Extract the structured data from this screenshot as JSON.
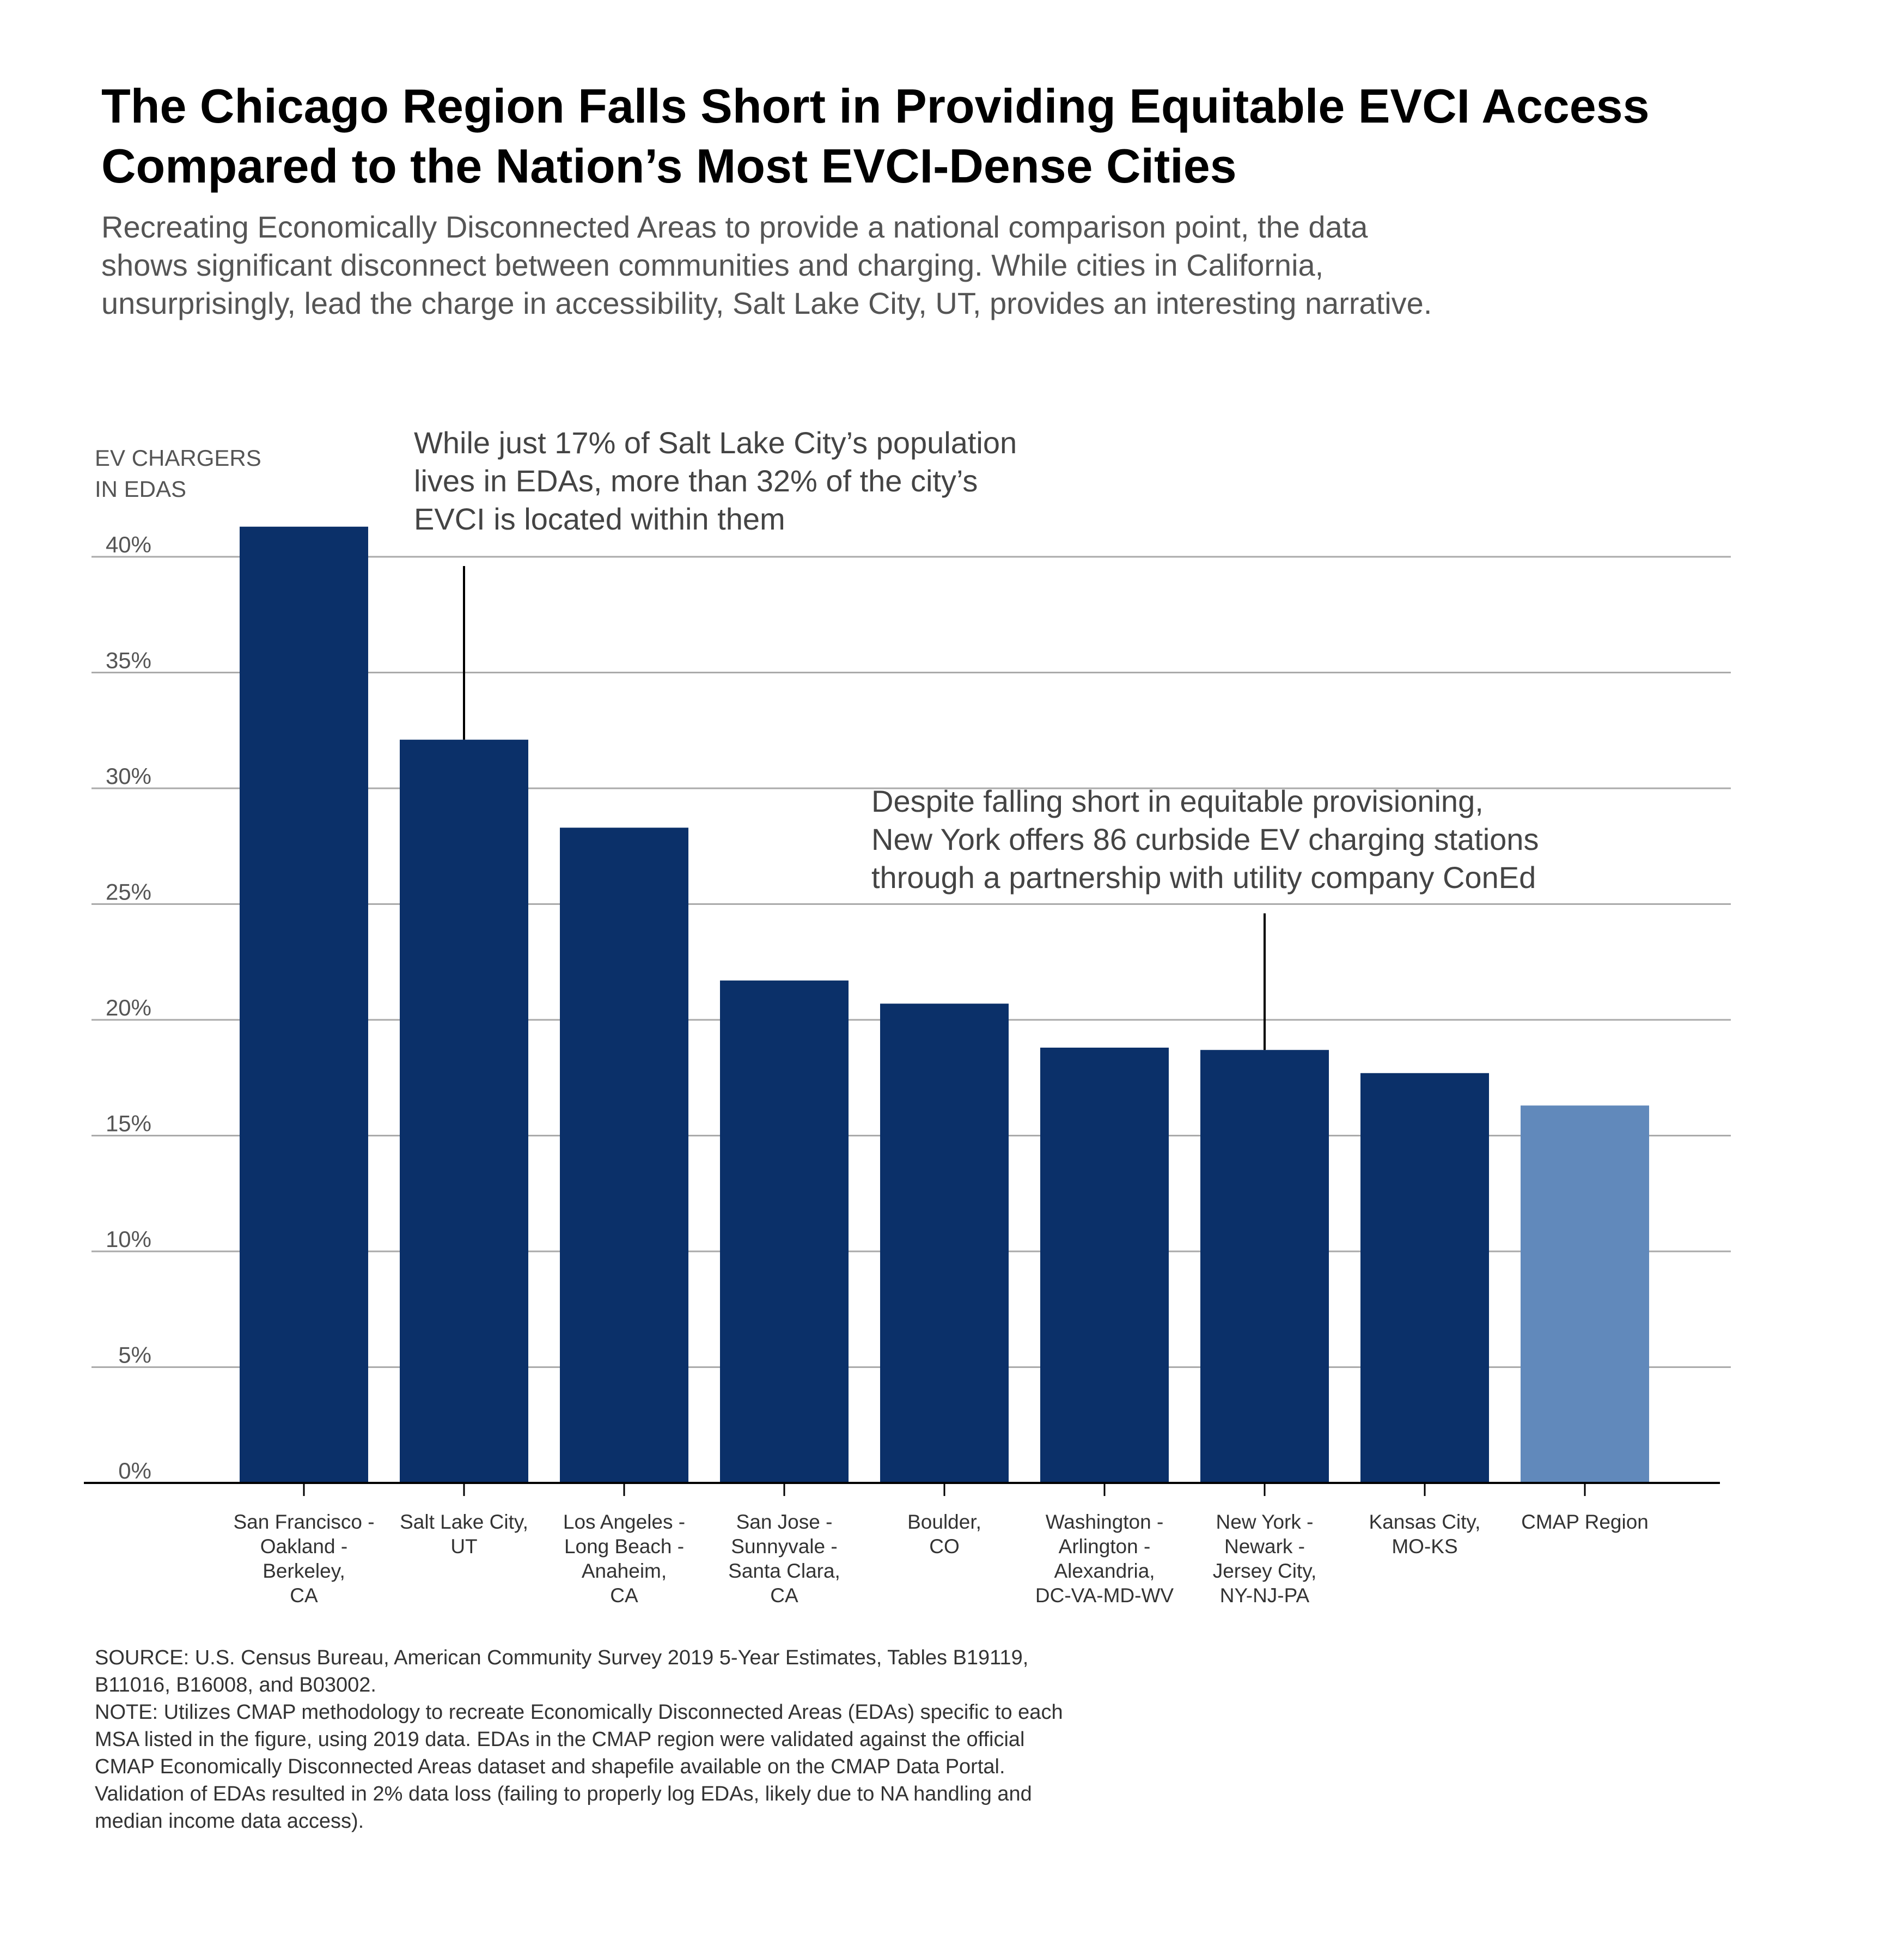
{
  "title_line1": "The Chicago Region Falls Short in Providing Equitable EVCI Access",
  "title_line2": "Compared to the Nation’s Most EVCI-Dense Cities",
  "subtitle_line1": "Recreating Economically Disconnected Areas to provide a national comparison point, the data",
  "subtitle_line2": "shows significant disconnect between communities and charging. While cities in California,",
  "subtitle_line3": "unsurprisingly, lead the charge in accessibility, Salt Lake City, UT, provides an interesting narrative.",
  "source_line1": "SOURCE: U.S. Census Bureau, American Community Survey 2019 5-Year Estimates, Tables B19119,",
  "source_line2": "B11016, B16008, and B03002.",
  "note_line1": "NOTE: Utilizes CMAP methodology to recreate Economically Disconnected Areas (EDAs) specific to each",
  "note_line2": "MSA listed in the figure, using 2019 data. EDAs in the CMAP region were validated against the official",
  "note_line3": "CMAP Economically Disconnected Areas dataset and shapefile available on the CMAP Data Portal.",
  "note_line4": "Validation of EDAs resulted in 2% data loss (failing to properly log EDAs, likely due to NA handling and",
  "note_line5": "median income data access).",
  "colors": {
    "bar_primary": "#0b3069",
    "bar_highlight": "#6189bb",
    "gridline": "#aaaaaa",
    "axis": "#000000"
  },
  "chart_data": {
    "type": "bar",
    "ylabel": [
      "EV CHARGERS",
      "IN EDAS"
    ],
    "ylim": [
      0,
      40
    ],
    "yticks": [
      "0%",
      "5%",
      "10%",
      "15%",
      "20%",
      "25%",
      "30%",
      "35%",
      "40%"
    ],
    "grid": true,
    "categories": [
      [
        "San Francisco -",
        "Oakland -",
        "Berkeley,",
        "CA"
      ],
      [
        "Salt Lake City,",
        "UT"
      ],
      [
        "Los Angeles -",
        "Long Beach -",
        "Anaheim,",
        "CA"
      ],
      [
        "San Jose -",
        "Sunnyvale -",
        "Santa Clara,",
        "CA"
      ],
      [
        "Boulder,",
        "CO"
      ],
      [
        "Washington -",
        "Arlington -",
        "Alexandria,",
        "DC-VA-MD-WV"
      ],
      [
        "New York -",
        "Newark -",
        "Jersey City,",
        "NY-NJ-PA"
      ],
      [
        "Kansas City,",
        "MO-KS"
      ],
      [
        "CMAP Region"
      ]
    ],
    "values": [
      41.3,
      32.1,
      28.3,
      21.7,
      20.7,
      18.8,
      18.7,
      17.7,
      16.3
    ],
    "highlight_index": 8,
    "annotations": [
      {
        "lines": [
          "While just 17% of Salt Lake City’s population",
          "lives in EDAs, more than 32% of the city’s",
          "EVCI is located within them"
        ],
        "bar_index": 1,
        "leader_top_value": 39.6
      },
      {
        "lines": [
          "Despite falling short in equitable provisioning,",
          "New York offers 86 curbside EV charging stations",
          "through a partnership with utility company ConEd"
        ],
        "bar_index": 6,
        "leader_top_value": 24.6
      }
    ]
  }
}
